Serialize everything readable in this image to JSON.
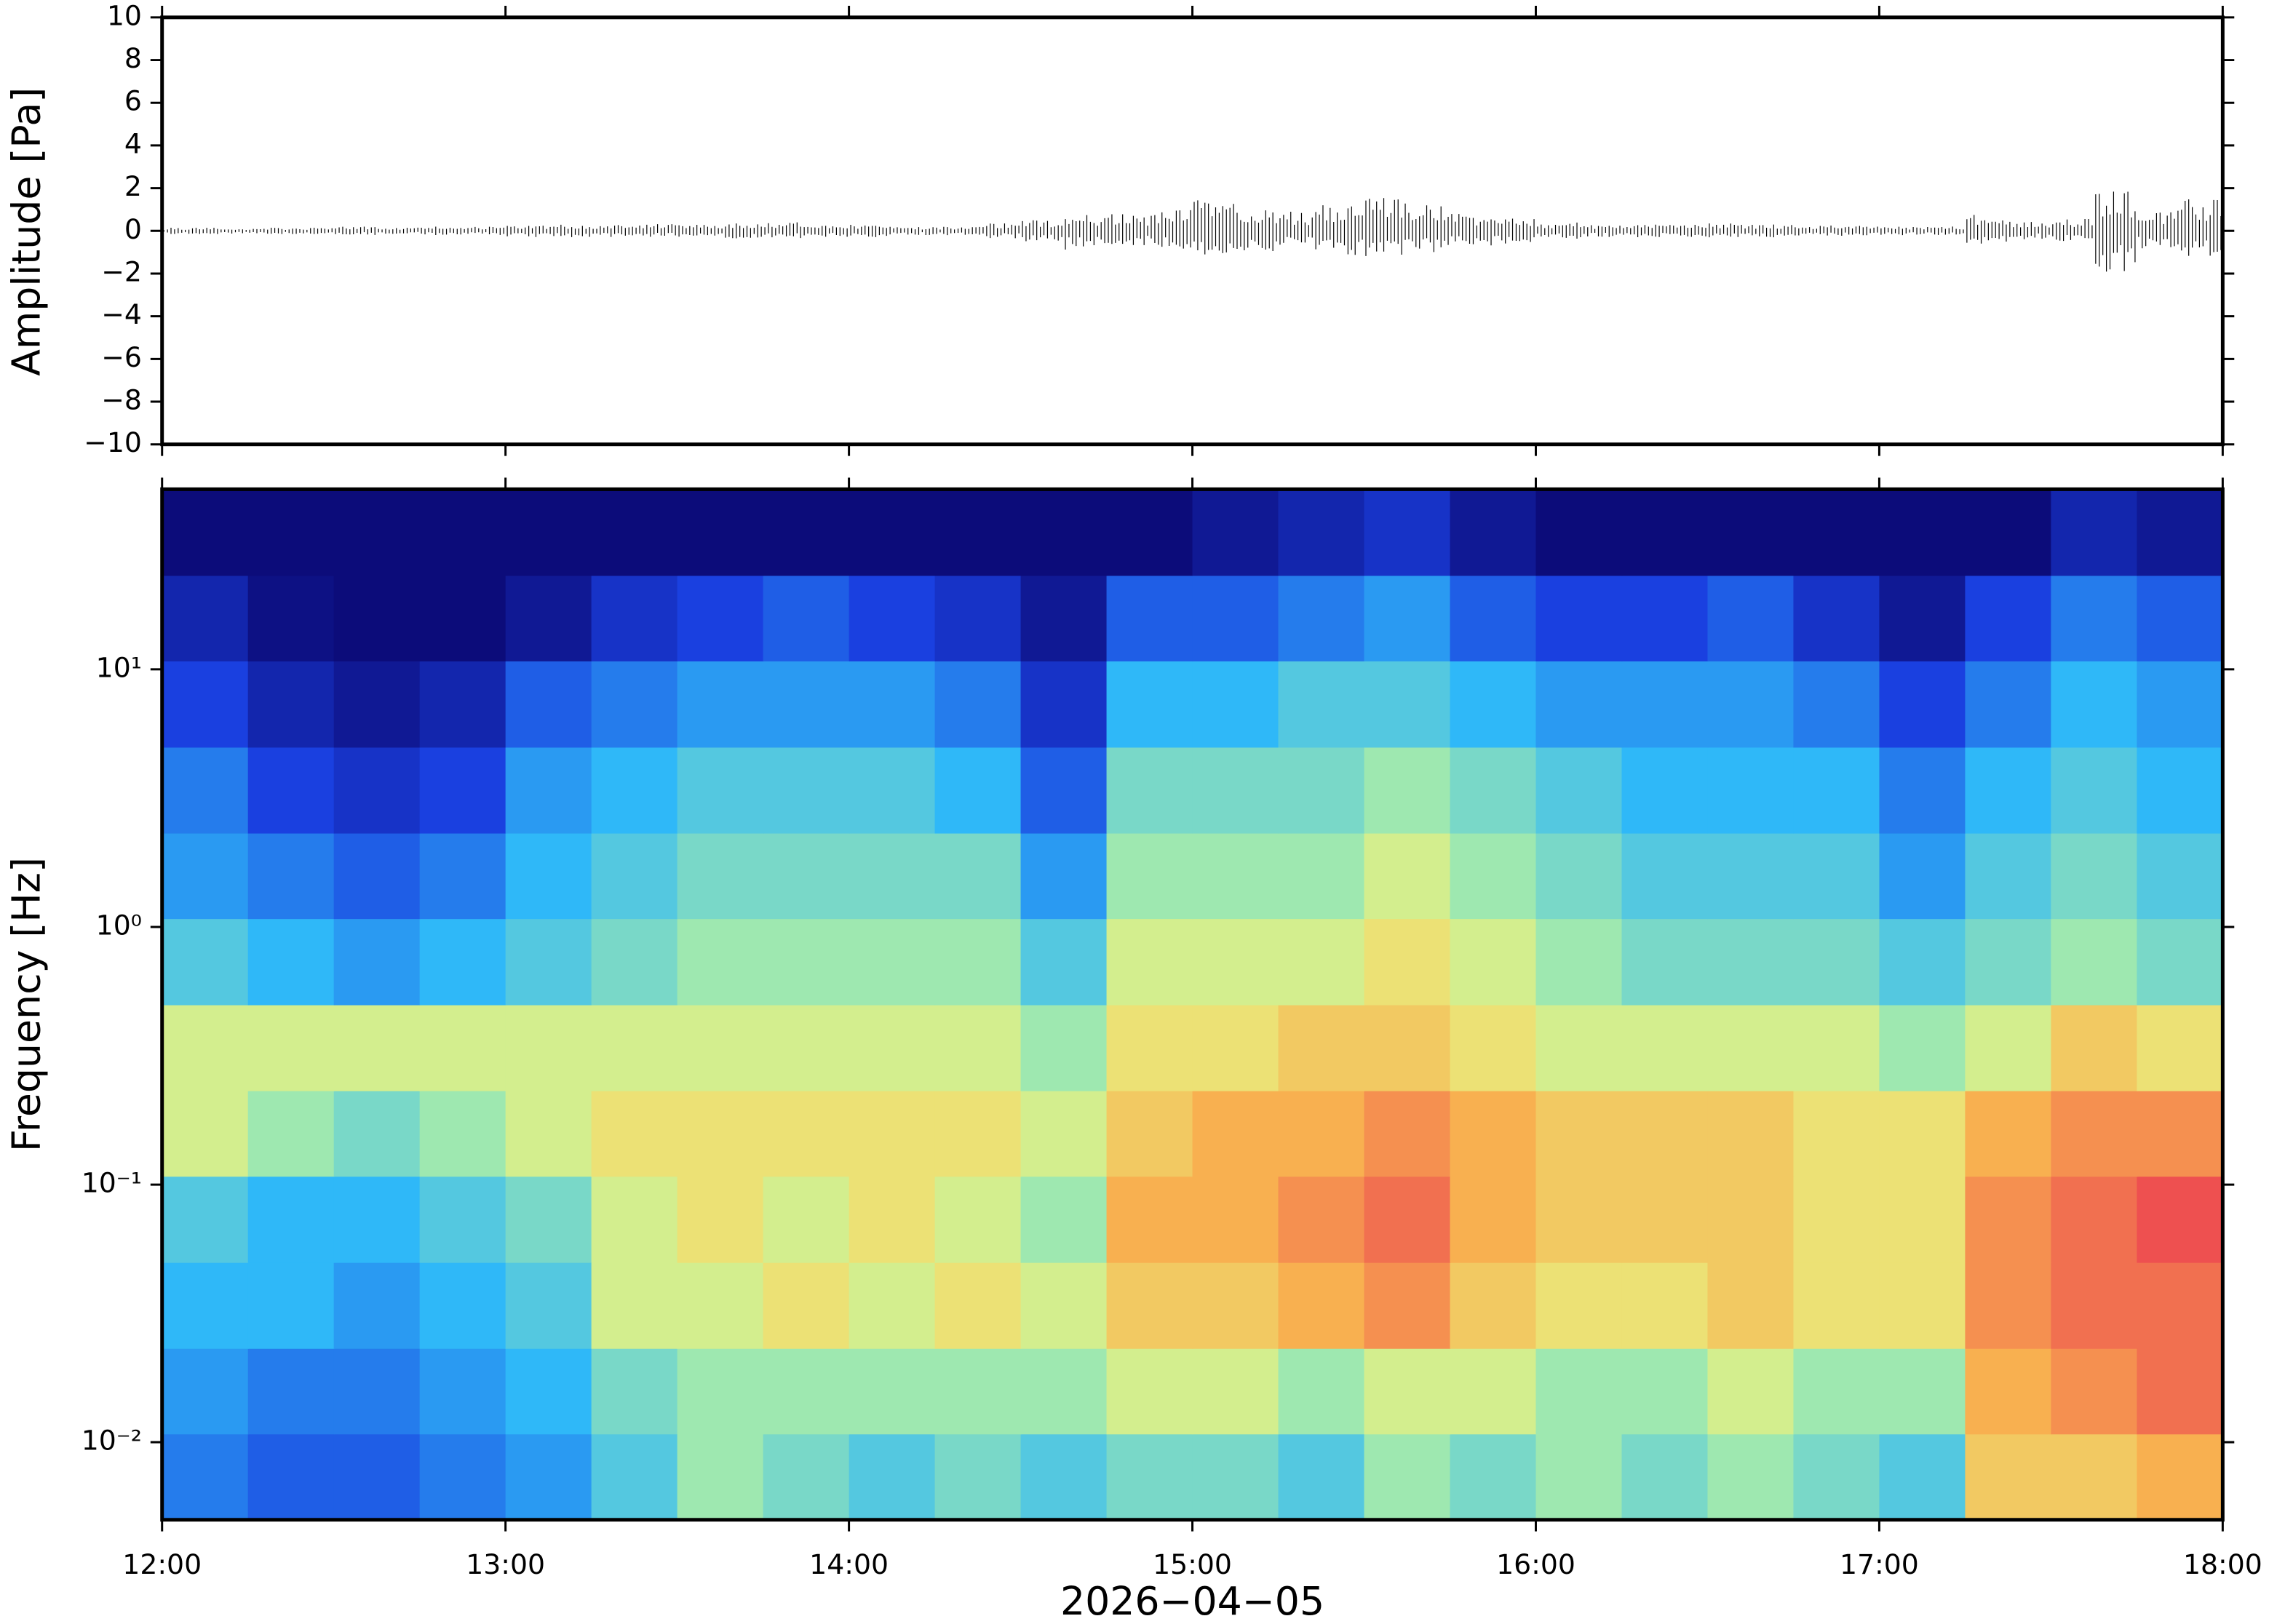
{
  "chart_data": [
    {
      "type": "waveform",
      "ylabel": "Amplitude [Pa]",
      "xlim": [
        12,
        18
      ],
      "ylim": [
        -10,
        10
      ],
      "yticks": [
        {
          "value": -10,
          "label": "−10"
        },
        {
          "value": -8,
          "label": "−8"
        },
        {
          "value": -6,
          "label": "−6"
        },
        {
          "value": -4,
          "label": "−4"
        },
        {
          "value": -2,
          "label": "−2"
        },
        0,
        2,
        4,
        6,
        8,
        10
      ],
      "x": [
        12.0625,
        12.1875,
        12.3125,
        12.4375,
        12.5625,
        12.6875,
        12.8125,
        12.9375,
        13.0625,
        13.1875,
        13.3125,
        13.4375,
        13.5625,
        13.6875,
        13.8125,
        13.9375,
        14.0625,
        14.1875,
        14.3125,
        14.4375,
        14.5625,
        14.6875,
        14.8125,
        14.9375,
        15.0625,
        15.1875,
        15.3125,
        15.4375,
        15.5625,
        15.6875,
        15.8125,
        15.9375,
        16.0625,
        16.1875,
        16.3125,
        16.4375,
        16.5625,
        16.6875,
        16.8125,
        16.9375,
        17.0625,
        17.1875,
        17.3125,
        17.4375,
        17.5625,
        17.6875,
        17.8125,
        17.9375
      ],
      "envelope_max": [
        0.15,
        0.15,
        0.15,
        0.15,
        0.2,
        0.15,
        0.2,
        0.2,
        0.3,
        0.3,
        0.3,
        0.35,
        0.3,
        0.35,
        0.4,
        0.3,
        0.3,
        0.2,
        0.2,
        0.35,
        0.55,
        0.8,
        0.8,
        1.0,
        1.5,
        1.1,
        0.9,
        1.2,
        1.6,
        1.2,
        0.8,
        0.6,
        0.4,
        0.3,
        0.3,
        0.3,
        0.35,
        0.3,
        0.25,
        0.25,
        0.2,
        0.2,
        0.8,
        0.5,
        0.6,
        2.0,
        1.0,
        1.5
      ],
      "envelope_min": [
        -0.15,
        -0.15,
        -0.15,
        -0.15,
        -0.2,
        -0.15,
        -0.2,
        -0.2,
        -0.3,
        -0.3,
        -0.3,
        -0.3,
        -0.3,
        -0.35,
        -0.35,
        -0.3,
        -0.3,
        -0.2,
        -0.2,
        -0.35,
        -0.5,
        -0.9,
        -0.7,
        -0.9,
        -1.2,
        -1.0,
        -0.9,
        -1.2,
        -1.2,
        -1.0,
        -0.8,
        -0.6,
        -0.4,
        -0.3,
        -0.3,
        -0.3,
        -0.3,
        -0.3,
        -0.25,
        -0.25,
        -0.2,
        -0.2,
        -0.6,
        -0.4,
        -0.6,
        -2.0,
        -0.9,
        -1.2
      ],
      "color": "#000000"
    },
    {
      "type": "spectrogram",
      "xlabel": "2026−04−05",
      "ylabel": "Frequency [Hz]",
      "xlim": [
        12,
        18
      ],
      "ylim": [
        0.005,
        50
      ],
      "ylog": true,
      "xticks": [
        {
          "value": 12,
          "label": "12:00"
        },
        {
          "value": 13,
          "label": "13:00"
        },
        {
          "value": 14,
          "label": "14:00"
        },
        {
          "value": 15,
          "label": "15:00"
        },
        {
          "value": 16,
          "label": "16:00"
        },
        {
          "value": 17,
          "label": "17:00"
        },
        {
          "value": 18,
          "label": "18:00"
        }
      ],
      "yticks": [
        {
          "value": 0.01,
          "label": "10⁻²"
        },
        {
          "value": 0.1,
          "label": "10⁻¹"
        },
        {
          "value": 1,
          "label": "10⁰"
        },
        {
          "value": 10,
          "label": "10¹"
        }
      ],
      "time_bins": [
        12,
        12.25,
        12.5,
        12.75,
        13,
        13.25,
        13.5,
        13.75,
        14,
        14.25,
        14.5,
        14.75,
        15,
        15.25,
        15.5,
        15.75,
        16,
        16.25,
        16.5,
        16.75,
        17,
        17.25,
        17.5,
        17.75,
        18
      ],
      "freq_bins": [
        0.005,
        0.0108,
        0.0232,
        0.05,
        0.108,
        0.232,
        0.5,
        1.08,
        2.32,
        5,
        10.8,
        23.2,
        50
      ],
      "z": [
        [
          0.3,
          0.25,
          0.25,
          0.3,
          0.35,
          0.45,
          0.55,
          0.5,
          0.45,
          0.5,
          0.45,
          0.5,
          0.5,
          0.45,
          0.55,
          0.5,
          0.55,
          0.5,
          0.55,
          0.5,
          0.45,
          0.7,
          0.7,
          0.75
        ],
        [
          0.35,
          0.3,
          0.3,
          0.35,
          0.4,
          0.5,
          0.55,
          0.55,
          0.55,
          0.55,
          0.55,
          0.6,
          0.6,
          0.55,
          0.6,
          0.6,
          0.55,
          0.55,
          0.6,
          0.55,
          0.55,
          0.75,
          0.8,
          0.85
        ],
        [
          0.4,
          0.4,
          0.35,
          0.4,
          0.45,
          0.6,
          0.6,
          0.65,
          0.6,
          0.65,
          0.6,
          0.7,
          0.7,
          0.75,
          0.8,
          0.7,
          0.65,
          0.65,
          0.7,
          0.65,
          0.65,
          0.8,
          0.85,
          0.85
        ],
        [
          0.45,
          0.4,
          0.4,
          0.45,
          0.5,
          0.6,
          0.65,
          0.6,
          0.65,
          0.6,
          0.55,
          0.75,
          0.75,
          0.8,
          0.85,
          0.75,
          0.7,
          0.7,
          0.7,
          0.65,
          0.65,
          0.8,
          0.85,
          0.9
        ],
        [
          0.6,
          0.55,
          0.5,
          0.55,
          0.6,
          0.65,
          0.65,
          0.65,
          0.65,
          0.65,
          0.6,
          0.7,
          0.75,
          0.75,
          0.8,
          0.75,
          0.7,
          0.7,
          0.7,
          0.65,
          0.65,
          0.75,
          0.8,
          0.8
        ],
        [
          0.6,
          0.6,
          0.6,
          0.6,
          0.6,
          0.6,
          0.6,
          0.6,
          0.6,
          0.6,
          0.55,
          0.65,
          0.65,
          0.7,
          0.7,
          0.65,
          0.6,
          0.6,
          0.6,
          0.6,
          0.55,
          0.6,
          0.7,
          0.65
        ],
        [
          0.45,
          0.4,
          0.35,
          0.4,
          0.45,
          0.5,
          0.55,
          0.55,
          0.55,
          0.55,
          0.45,
          0.6,
          0.6,
          0.6,
          0.65,
          0.6,
          0.55,
          0.5,
          0.5,
          0.5,
          0.45,
          0.5,
          0.55,
          0.5
        ],
        [
          0.35,
          0.3,
          0.25,
          0.3,
          0.4,
          0.45,
          0.5,
          0.5,
          0.5,
          0.5,
          0.35,
          0.55,
          0.55,
          0.55,
          0.6,
          0.55,
          0.5,
          0.45,
          0.45,
          0.45,
          0.35,
          0.45,
          0.5,
          0.45
        ],
        [
          0.3,
          0.2,
          0.15,
          0.2,
          0.35,
          0.4,
          0.45,
          0.45,
          0.45,
          0.4,
          0.25,
          0.5,
          0.5,
          0.5,
          0.55,
          0.5,
          0.45,
          0.4,
          0.4,
          0.4,
          0.3,
          0.4,
          0.45,
          0.4
        ],
        [
          0.2,
          0.1,
          0.05,
          0.1,
          0.25,
          0.3,
          0.35,
          0.35,
          0.35,
          0.3,
          0.15,
          0.4,
          0.4,
          0.45,
          0.45,
          0.4,
          0.35,
          0.35,
          0.35,
          0.3,
          0.2,
          0.3,
          0.4,
          0.35
        ],
        [
          0.1,
          0.02,
          0,
          0,
          0.05,
          0.15,
          0.2,
          0.25,
          0.2,
          0.15,
          0.05,
          0.25,
          0.25,
          0.3,
          0.35,
          0.25,
          0.2,
          0.2,
          0.25,
          0.15,
          0.05,
          0.2,
          0.3,
          0.25
        ],
        [
          0,
          0,
          0,
          0,
          0,
          0,
          0,
          0,
          0,
          0,
          0,
          0,
          0.05,
          0.1,
          0.15,
          0.05,
          0,
          0,
          0,
          0,
          0,
          0,
          0.1,
          0.05
        ]
      ],
      "colorscale": [
        [
          0,
          "#0c0c7a"
        ],
        [
          0.2,
          "#1a40e0"
        ],
        [
          0.4,
          "#2fb8f8"
        ],
        [
          0.55,
          "#9ee8b0"
        ],
        [
          0.62,
          "#e8f080"
        ],
        [
          0.75,
          "#f8b050"
        ],
        [
          0.9,
          "#ee5050"
        ]
      ]
    }
  ]
}
